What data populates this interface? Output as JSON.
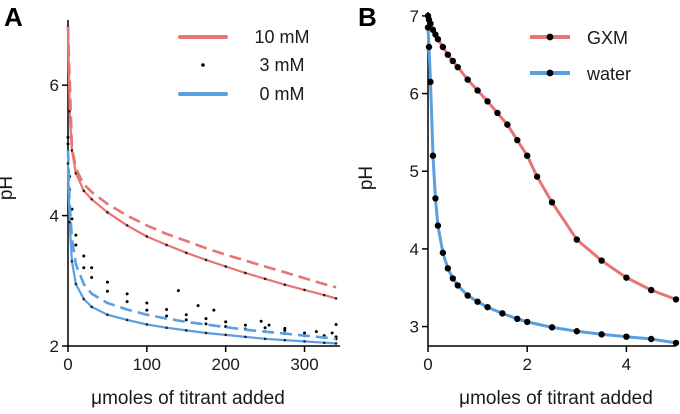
{
  "chart_data": [
    {
      "panel": "A",
      "type": "scatter",
      "xlabel": "μmoles of titrant added",
      "ylabel": "pH",
      "xlim": [
        0,
        345
      ],
      "ylim": [
        2,
        7
      ],
      "xticks": [
        0,
        100,
        200,
        300
      ],
      "yticks": [
        2,
        4,
        6
      ],
      "legend_position": "top-right",
      "series": [
        {
          "name": "10 mM",
          "color": "#e87575",
          "style": "line-dots",
          "x": [
            0,
            2,
            5,
            10,
            20,
            30,
            50,
            75,
            100,
            125,
            150,
            175,
            200,
            225,
            250,
            275,
            300,
            325,
            340
          ],
          "y": [
            6.9,
            5.6,
            5.0,
            4.65,
            4.38,
            4.25,
            4.05,
            3.85,
            3.68,
            3.55,
            3.43,
            3.32,
            3.22,
            3.12,
            3.03,
            2.94,
            2.86,
            2.78,
            2.73
          ]
        },
        {
          "name": "10 mM",
          "color": "#e87575",
          "style": "dashed",
          "x": [
            0,
            5,
            10,
            20,
            30,
            50,
            75,
            100,
            125,
            150,
            175,
            200,
            225,
            250,
            275,
            300,
            325,
            340
          ],
          "y": [
            6.9,
            5.05,
            4.72,
            4.48,
            4.36,
            4.18,
            4.0,
            3.85,
            3.72,
            3.61,
            3.5,
            3.4,
            3.31,
            3.22,
            3.13,
            3.04,
            2.95,
            2.9
          ]
        },
        {
          "name": "3 mM",
          "color": "#000000",
          "style": "dots",
          "x": [
            0,
            2,
            5,
            10,
            20,
            30,
            50,
            75,
            100,
            125,
            150,
            175,
            200,
            225,
            250,
            275,
            300,
            325,
            340
          ],
          "y": [
            5.2,
            4.6,
            4.1,
            3.7,
            3.38,
            3.2,
            2.98,
            2.8,
            2.66,
            2.56,
            2.48,
            2.42,
            2.37,
            2.32,
            2.28,
            2.24,
            2.2,
            2.16,
            2.14
          ]
        },
        {
          "name": "3 mM",
          "color": "#000000",
          "style": "dots",
          "x": [
            0,
            2,
            5,
            10,
            20,
            30,
            50,
            75,
            100,
            125,
            150,
            175,
            200,
            225,
            250,
            275,
            300,
            325,
            340
          ],
          "y": [
            5.1,
            4.4,
            3.95,
            3.55,
            3.2,
            3.05,
            2.84,
            2.68,
            2.55,
            2.46,
            2.4,
            2.34,
            2.3,
            2.26,
            2.22,
            2.19,
            2.16,
            2.13,
            2.11
          ]
        },
        {
          "name": "0 mM",
          "color": "#5a9fe0",
          "style": "dashed",
          "x": [
            0,
            2,
            5,
            10,
            20,
            30,
            50,
            75,
            100,
            125,
            150,
            175,
            200,
            225,
            250,
            275,
            300,
            325,
            340
          ],
          "y": [
            5.0,
            4.2,
            3.65,
            3.25,
            2.95,
            2.8,
            2.66,
            2.56,
            2.48,
            2.42,
            2.37,
            2.33,
            2.29,
            2.25,
            2.22,
            2.19,
            2.16,
            2.13,
            2.11
          ]
        },
        {
          "name": "0 mM",
          "color": "#5a9fe0",
          "style": "line-dots",
          "x": [
            0,
            2,
            5,
            10,
            20,
            30,
            50,
            75,
            100,
            125,
            150,
            175,
            200,
            225,
            250,
            275,
            300,
            325,
            340
          ],
          "y": [
            4.8,
            3.9,
            3.3,
            2.95,
            2.72,
            2.6,
            2.48,
            2.4,
            2.33,
            2.28,
            2.24,
            2.2,
            2.17,
            2.14,
            2.11,
            2.09,
            2.07,
            2.05,
            2.04
          ]
        }
      ],
      "legend": [
        {
          "label": "10 mM",
          "color": "#e87575",
          "marker": "line"
        },
        {
          "label": "3 mM",
          "color": "#000000",
          "marker": "dot"
        },
        {
          "label": "0 mM",
          "color": "#5a9fe0",
          "marker": "line"
        }
      ]
    },
    {
      "panel": "B",
      "type": "line",
      "xlabel": "μmoles of titrant added",
      "ylabel": "pH",
      "xlim": [
        0,
        5
      ],
      "ylim": [
        2.75,
        7.05
      ],
      "xticks": [
        0,
        2,
        4
      ],
      "yticks": [
        3,
        4,
        5,
        6,
        7
      ],
      "legend_position": "top-right",
      "series": [
        {
          "name": "GXM",
          "color": "#e87575",
          "x": [
            0,
            0.02,
            0.05,
            0.1,
            0.15,
            0.2,
            0.3,
            0.4,
            0.5,
            0.6,
            0.8,
            1.0,
            1.2,
            1.4,
            1.6,
            1.8,
            2.0,
            2.2,
            2.5,
            3.0,
            3.5,
            4.0,
            4.5,
            5.0
          ],
          "y": [
            7.0,
            6.95,
            6.9,
            6.82,
            6.76,
            6.7,
            6.6,
            6.5,
            6.42,
            6.34,
            6.18,
            6.04,
            5.9,
            5.75,
            5.6,
            5.4,
            5.2,
            4.93,
            4.6,
            4.12,
            3.85,
            3.63,
            3.47,
            3.35
          ]
        },
        {
          "name": "water",
          "color": "#5a9fe0",
          "x": [
            0,
            0.02,
            0.05,
            0.1,
            0.15,
            0.2,
            0.3,
            0.4,
            0.5,
            0.6,
            0.8,
            1.0,
            1.2,
            1.5,
            1.8,
            2.0,
            2.5,
            3.0,
            3.5,
            4.0,
            4.5,
            5.0
          ],
          "y": [
            6.85,
            6.6,
            6.15,
            5.2,
            4.65,
            4.3,
            3.95,
            3.75,
            3.62,
            3.53,
            3.4,
            3.32,
            3.25,
            3.17,
            3.1,
            3.06,
            2.99,
            2.94,
            2.9,
            2.87,
            2.84,
            2.79
          ]
        }
      ],
      "legend": [
        {
          "label": "GXM",
          "color": "#e87575"
        },
        {
          "label": "water",
          "color": "#5a9fe0"
        }
      ]
    }
  ]
}
